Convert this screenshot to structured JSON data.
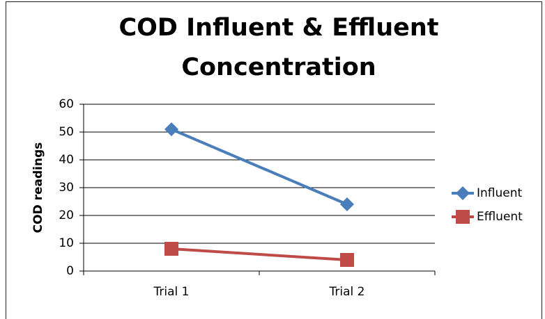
{
  "chart_data": {
    "type": "line",
    "title": "COD Influent & Effluent Concentration",
    "y_label": "COD readings",
    "categories": [
      "Trial 1",
      "Trial 2"
    ],
    "series": [
      {
        "name": "Influent",
        "color": "#4a7ebb",
        "marker": "diamond",
        "values": [
          51,
          24
        ]
      },
      {
        "name": "Effluent",
        "color": "#be4b48",
        "marker": "square",
        "values": [
          8,
          4
        ]
      }
    ],
    "ylim": [
      0,
      60
    ],
    "yticks": [
      0,
      10,
      20,
      30,
      40,
      50,
      60
    ],
    "grid": true,
    "legend": "right"
  }
}
